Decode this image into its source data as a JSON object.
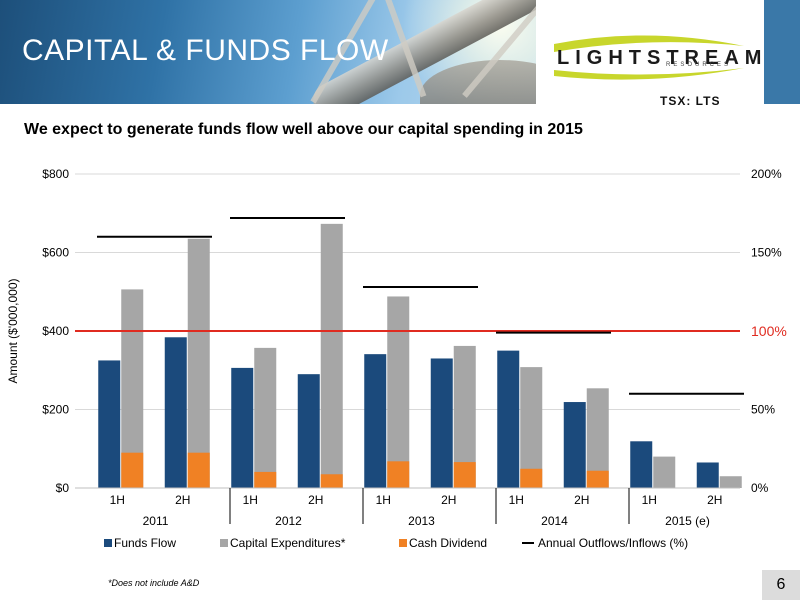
{
  "slide": {
    "title": "CAPITAL & FUNDS FLOW",
    "logo": {
      "name": "LIGHTSTREAM",
      "subtitle": "RESOURCES"
    },
    "ticker": "TSX: LTS",
    "headline": "We expect to generate funds flow well above our capital spending in 2015",
    "footnote": "*Does not include A&D",
    "page_number": "6"
  },
  "colors": {
    "funds_flow": "#1b4a7c",
    "capex": "#a6a6a6",
    "dividend": "#f08124",
    "reference_line": "#e02b20",
    "outflow_marker": "#000000",
    "gridline": "#d9d9d9"
  },
  "chart_data": {
    "type": "bar",
    "ylabel": "Amount ($'000,000)",
    "ylim": [
      0,
      800
    ],
    "y2lim": [
      0,
      200
    ],
    "y_ticks": [
      "$0",
      "$200",
      "$400",
      "$600",
      "$800"
    ],
    "y2_ticks": [
      "0%",
      "50%",
      "100%",
      "150%",
      "200%"
    ],
    "reference_line": {
      "value_pct": 100,
      "label": "100%"
    },
    "grid": true,
    "legend_position": "bottom",
    "categories": [
      "1H",
      "2H",
      "1H",
      "2H",
      "1H",
      "2H",
      "1H",
      "2H",
      "1H",
      "2H"
    ],
    "groups": [
      {
        "label": "2011",
        "span": 2
      },
      {
        "label": "2012",
        "span": 2
      },
      {
        "label": "2013",
        "span": 2
      },
      {
        "label": "2014",
        "span": 2
      },
      {
        "label": "2015 (e)",
        "span": 2
      }
    ],
    "series": [
      {
        "name": "Funds Flow",
        "values": [
          325,
          384,
          306,
          290,
          341,
          330,
          350,
          219,
          119,
          65
        ]
      },
      {
        "name": "Capital Expenditures*",
        "values": [
          506,
          635,
          357,
          673,
          488,
          362,
          308,
          254,
          80,
          30
        ]
      },
      {
        "name": "Cash Dividend",
        "values": [
          90,
          90,
          41,
          35,
          68,
          66,
          49,
          44,
          0,
          0
        ]
      }
    ],
    "annual_outflows_inflows": {
      "name": "Annual Outflows/Inflows (%)",
      "values_pct": [
        160,
        172,
        128,
        99,
        60
      ]
    }
  }
}
